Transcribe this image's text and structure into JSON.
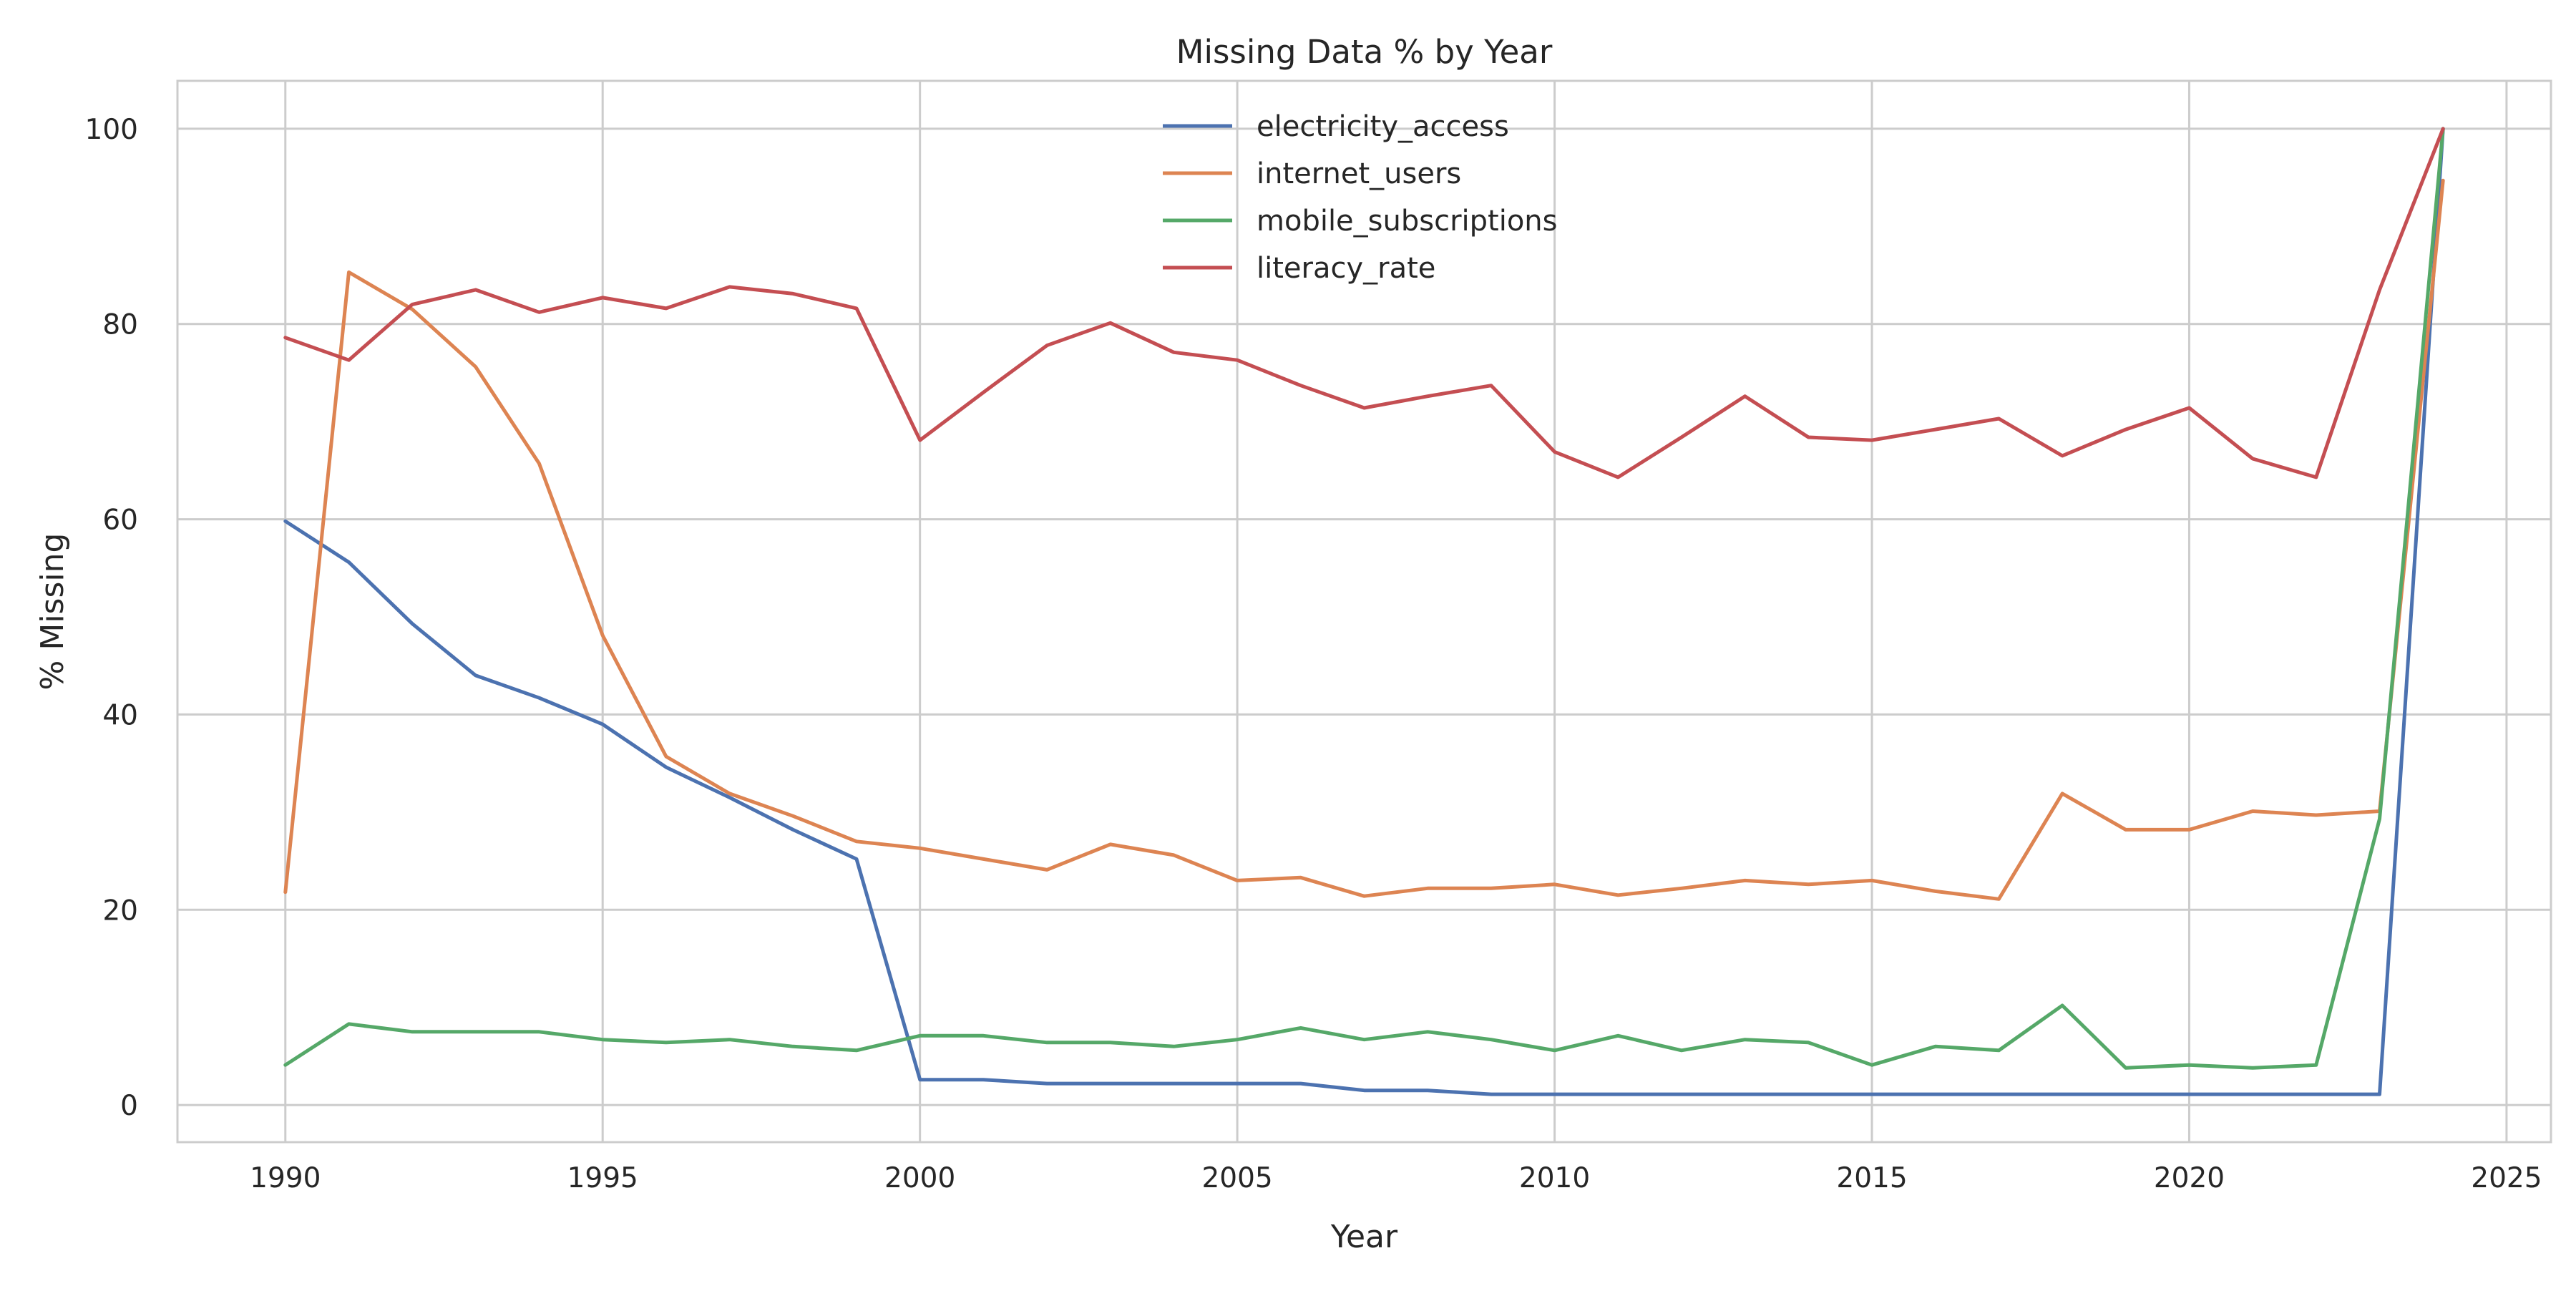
{
  "chart_data": {
    "type": "line",
    "title": "Missing Data % by Year",
    "xlabel": "Year",
    "ylabel": "% Missing",
    "xlim": [
      1988.3,
      2025.7
    ],
    "ylim": [
      -3.8,
      104.9
    ],
    "xticks": [
      1990,
      1995,
      2000,
      2005,
      2010,
      2015,
      2020,
      2025
    ],
    "yticks": [
      0,
      20,
      40,
      60,
      80,
      100
    ],
    "grid": true,
    "legend_position": "upper center",
    "x": [
      1990,
      1991,
      1992,
      1993,
      1994,
      1995,
      1996,
      1997,
      1998,
      1999,
      2000,
      2001,
      2002,
      2003,
      2004,
      2005,
      2006,
      2007,
      2008,
      2009,
      2010,
      2011,
      2012,
      2013,
      2014,
      2015,
      2016,
      2017,
      2018,
      2019,
      2020,
      2021,
      2022,
      2023,
      2024
    ],
    "series": [
      {
        "name": "electricity_access",
        "color": "#4c72b0",
        "values": [
          59.8,
          55.6,
          49.3,
          44.0,
          41.7,
          39.0,
          34.6,
          31.5,
          28.2,
          25.2,
          2.6,
          2.6,
          2.2,
          2.2,
          2.2,
          2.2,
          2.2,
          1.5,
          1.5,
          1.1,
          1.1,
          1.1,
          1.1,
          1.1,
          1.1,
          1.1,
          1.1,
          1.1,
          1.1,
          1.1,
          1.1,
          1.1,
          1.1,
          1.1,
          100.0
        ]
      },
      {
        "name": "internet_users",
        "color": "#dd8452",
        "values": [
          21.8,
          85.3,
          81.5,
          75.6,
          65.7,
          48.1,
          35.7,
          31.9,
          29.6,
          27.0,
          26.3,
          25.2,
          24.1,
          26.7,
          25.6,
          23.0,
          23.3,
          21.4,
          22.2,
          22.2,
          22.6,
          21.5,
          22.2,
          23.0,
          22.6,
          23.0,
          21.9,
          21.1,
          31.9,
          28.2,
          28.2,
          30.1,
          29.7,
          30.1,
          94.7
        ]
      },
      {
        "name": "mobile_subscriptions",
        "color": "#55a868",
        "values": [
          4.1,
          8.3,
          7.5,
          7.5,
          7.5,
          6.7,
          6.4,
          6.7,
          6.0,
          5.6,
          7.1,
          7.1,
          6.4,
          6.4,
          6.0,
          6.7,
          7.9,
          6.7,
          7.5,
          6.7,
          5.6,
          7.1,
          5.6,
          6.7,
          6.4,
          4.1,
          6.0,
          5.6,
          10.2,
          3.8,
          4.1,
          3.8,
          4.1,
          29.3,
          100.0
        ]
      },
      {
        "name": "literacy_rate",
        "color": "#c44e52",
        "values": [
          78.6,
          76.3,
          82.0,
          83.5,
          81.2,
          82.7,
          81.6,
          83.8,
          83.1,
          81.6,
          68.1,
          73.0,
          77.8,
          80.1,
          77.1,
          76.3,
          73.7,
          71.4,
          72.6,
          73.7,
          66.9,
          64.3,
          68.4,
          72.6,
          68.4,
          68.1,
          69.2,
          70.3,
          66.5,
          69.2,
          71.4,
          66.2,
          64.3,
          83.5,
          100.0
        ]
      }
    ]
  }
}
